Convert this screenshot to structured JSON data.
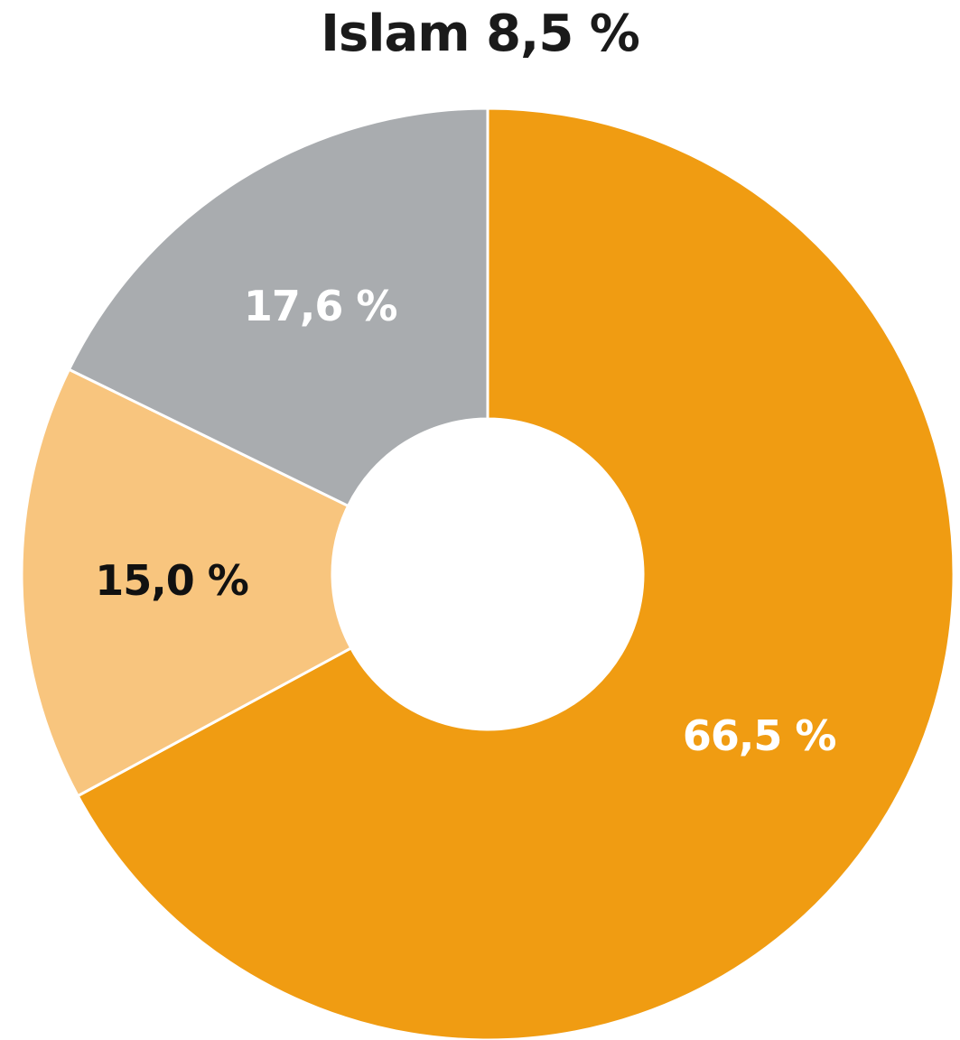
{
  "chart_data": {
    "type": "pie",
    "title": "Islam 8,5 %",
    "donut": true,
    "slices": [
      {
        "value": 66.5,
        "label": "66,5 %",
        "color": "#F09C12",
        "label_color": "#FFFFFF"
      },
      {
        "value": 15.0,
        "label": "15,0 %",
        "color": "#F8C57E",
        "label_color": "#111111"
      },
      {
        "value": 17.6,
        "label": "17,6 %",
        "color": "#A9ACAF",
        "label_color": "#FFFFFF"
      }
    ]
  }
}
